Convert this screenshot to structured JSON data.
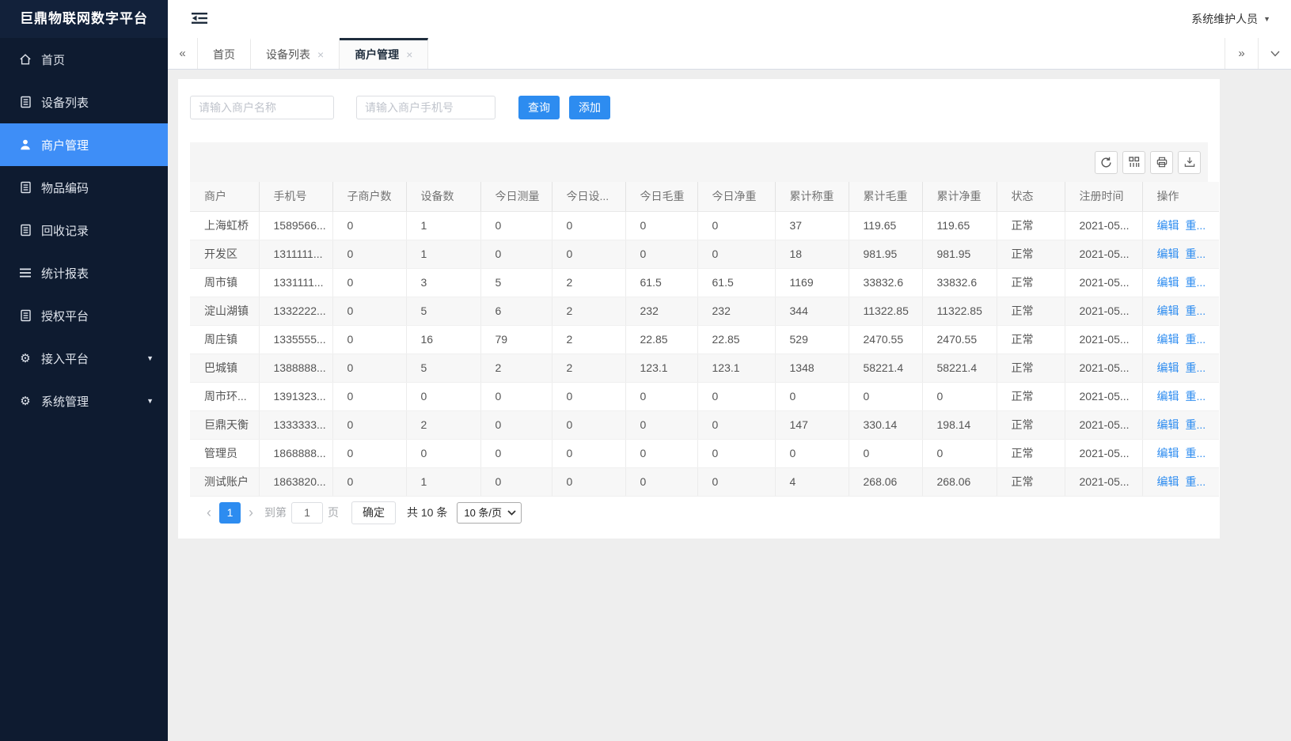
{
  "app": {
    "title": "巨鼎物联网数字平台",
    "user_role": "系统维护人员"
  },
  "colors": {
    "accent": "#2d8cf0",
    "sidebar_bg": "#0e1b30",
    "sidebar_active": "#3e8ef7",
    "tab_active_bar": "#1f2d3d"
  },
  "sidebar": {
    "items": [
      {
        "id": "home",
        "label": "首页",
        "icon": "home-icon",
        "active": false,
        "caret": false
      },
      {
        "id": "device-list",
        "label": "设备列表",
        "icon": "doc-icon",
        "active": false,
        "caret": false
      },
      {
        "id": "merchant-management",
        "label": "商户管理",
        "icon": "user-icon",
        "active": true,
        "caret": false
      },
      {
        "id": "item-code",
        "label": "物品编码",
        "icon": "doc-icon",
        "active": false,
        "caret": false
      },
      {
        "id": "recycle-records",
        "label": "回收记录",
        "icon": "doc-icon",
        "active": false,
        "caret": false
      },
      {
        "id": "statistics-report",
        "label": "统计报表",
        "icon": "list-icon",
        "active": false,
        "caret": false
      },
      {
        "id": "authorized-platform",
        "label": "授权平台",
        "icon": "doc-icon",
        "active": false,
        "caret": false
      },
      {
        "id": "access-platform",
        "label": "接入平台",
        "icon": "gear-icon",
        "active": false,
        "caret": true
      },
      {
        "id": "system-management",
        "label": "系统管理",
        "icon": "gear-icon",
        "active": false,
        "caret": true
      }
    ]
  },
  "tabbar": {
    "scroll_left": "«",
    "scroll_right": "»",
    "tabs": [
      {
        "id": "home",
        "label": "首页",
        "closable": false,
        "active": false
      },
      {
        "id": "device-list",
        "label": "设备列表",
        "closable": true,
        "active": false
      },
      {
        "id": "merchant-management",
        "label": "商户管理",
        "closable": true,
        "active": true
      }
    ]
  },
  "search": {
    "name_placeholder": "请输入商户名称",
    "phone_placeholder": "请输入商户手机号",
    "query_label": "查询",
    "add_label": "添加"
  },
  "table": {
    "columns": [
      "商户",
      "手机号",
      "子商户数",
      "设备数",
      "今日测量",
      "今日设...",
      "今日毛重",
      "今日净重",
      "累计称重",
      "累计毛重",
      "累计净重",
      "状态",
      "注册时间",
      "操作"
    ],
    "action_labels": [
      "编辑",
      "重..."
    ],
    "rows": [
      [
        "上海虹桥",
        "1589566...",
        "0",
        "1",
        "0",
        "0",
        "0",
        "0",
        "37",
        "119.65",
        "119.65",
        "正常",
        "2021-05..."
      ],
      [
        "开发区",
        "1311111...",
        "0",
        "1",
        "0",
        "0",
        "0",
        "0",
        "18",
        "981.95",
        "981.95",
        "正常",
        "2021-05..."
      ],
      [
        "周市镇",
        "1331111...",
        "0",
        "3",
        "5",
        "2",
        "61.5",
        "61.5",
        "1169",
        "33832.6",
        "33832.6",
        "正常",
        "2021-05..."
      ],
      [
        "淀山湖镇",
        "1332222...",
        "0",
        "5",
        "6",
        "2",
        "232",
        "232",
        "344",
        "11322.85",
        "11322.85",
        "正常",
        "2021-05..."
      ],
      [
        "周庄镇",
        "1335555...",
        "0",
        "16",
        "79",
        "2",
        "22.85",
        "22.85",
        "529",
        "2470.55",
        "2470.55",
        "正常",
        "2021-05..."
      ],
      [
        "巴城镇",
        "1388888...",
        "0",
        "5",
        "2",
        "2",
        "123.1",
        "123.1",
        "1348",
        "58221.4",
        "58221.4",
        "正常",
        "2021-05..."
      ],
      [
        "周市环...",
        "1391323...",
        "0",
        "0",
        "0",
        "0",
        "0",
        "0",
        "0",
        "0",
        "0",
        "正常",
        "2021-05..."
      ],
      [
        "巨鼎天衡",
        "1333333...",
        "0",
        "2",
        "0",
        "0",
        "0",
        "0",
        "147",
        "330.14",
        "198.14",
        "正常",
        "2021-05..."
      ],
      [
        "管理员",
        "1868888...",
        "0",
        "0",
        "0",
        "0",
        "0",
        "0",
        "0",
        "0",
        "0",
        "正常",
        "2021-05..."
      ],
      [
        "测试账户",
        "1863820...",
        "0",
        "1",
        "0",
        "0",
        "0",
        "0",
        "4",
        "268.06",
        "268.06",
        "正常",
        "2021-05..."
      ]
    ]
  },
  "pagination": {
    "prev_label": "‹",
    "current_page": "1",
    "next_label": "›",
    "goto_label": "到第",
    "goto_value": "1",
    "page_unit_label": "页",
    "confirm_label": "确定",
    "total_label": "共 10 条",
    "page_size_label": "10 条/页"
  }
}
